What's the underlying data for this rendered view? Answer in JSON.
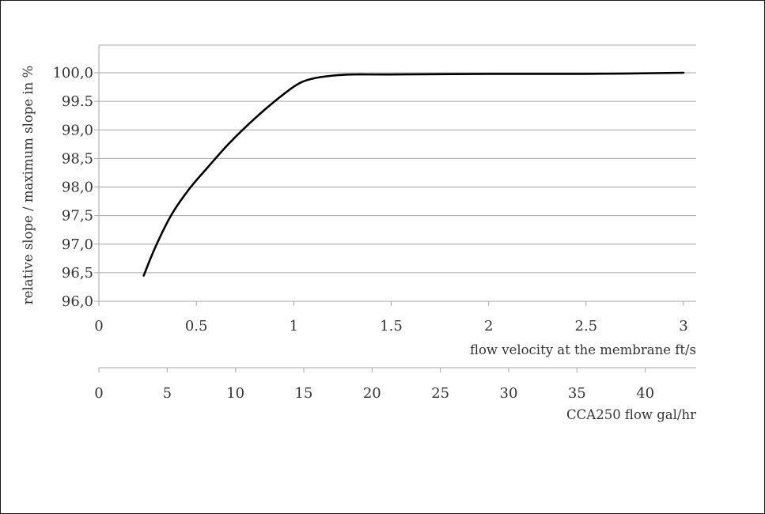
{
  "chart_data": {
    "type": "line",
    "ylabel": "relative slope / maximum slope in %",
    "xlabel": "flow velocity at the membrane ft/s",
    "x2label": "CCA250 flow gal/hr",
    "ylim": [
      96.0,
      100.0
    ],
    "yticks": [
      "96,0",
      "96,5",
      "97,0",
      "97,5",
      "98,0",
      "98,5",
      "99,0",
      "99.5",
      "100,0"
    ],
    "xlim": [
      0,
      3
    ],
    "xticks": [
      "0",
      "0.5",
      "1",
      "1.5",
      "2",
      "2.5",
      "3"
    ],
    "x2lim": [
      0,
      42.8
    ],
    "x2ticks": [
      "0",
      "5",
      "10",
      "15",
      "20",
      "25",
      "30",
      "35",
      "40"
    ],
    "grid": true,
    "series": [
      {
        "x": [
          0.23,
          0.29,
          0.37,
          0.46,
          0.56,
          0.67,
          0.8,
          0.92,
          1.02,
          1.1,
          1.2,
          1.3,
          1.5,
          2.0,
          2.5,
          3.0
        ],
        "y": [
          96.45,
          96.95,
          97.5,
          97.95,
          98.35,
          98.77,
          99.2,
          99.55,
          99.8,
          99.9,
          99.95,
          99.97,
          99.97,
          99.98,
          99.98,
          100.0
        ]
      }
    ]
  }
}
